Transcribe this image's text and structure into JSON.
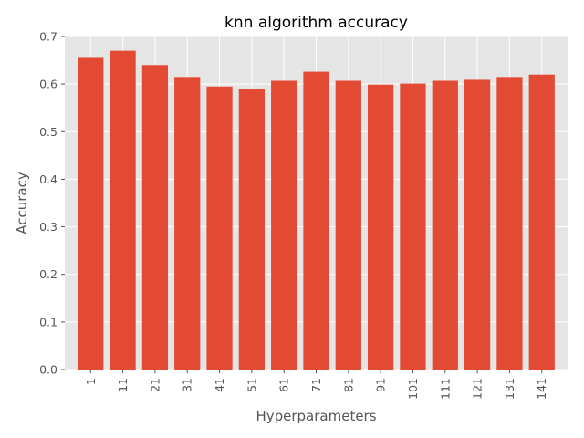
{
  "chart_data": {
    "type": "bar",
    "title": "knn algorithm accuracy",
    "xlabel": "Hyperparameters",
    "ylabel": "Accuracy",
    "categories": [
      "1",
      "11",
      "21",
      "31",
      "41",
      "51",
      "61",
      "71",
      "81",
      "91",
      "101",
      "111",
      "121",
      "131",
      "141"
    ],
    "values": [
      0.655,
      0.67,
      0.64,
      0.615,
      0.595,
      0.59,
      0.607,
      0.626,
      0.607,
      0.599,
      0.601,
      0.607,
      0.609,
      0.615,
      0.62
    ],
    "ylim": [
      0,
      0.7
    ],
    "yticks": [
      "0.0",
      "0.1",
      "0.2",
      "0.3",
      "0.4",
      "0.5",
      "0.6",
      "0.7"
    ],
    "grid": true,
    "legend": "none",
    "colors": {
      "bar": "#E24A33",
      "plot_background": "#E5E5E5",
      "grid": "#FFFFFF"
    }
  }
}
